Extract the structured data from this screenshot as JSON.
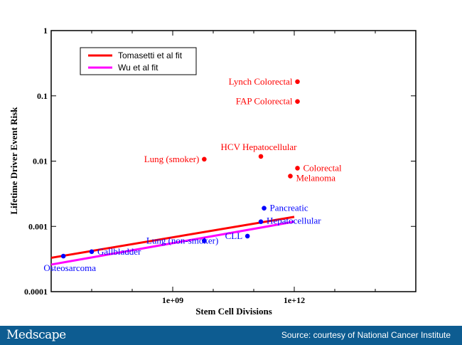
{
  "chart_data": {
    "type": "scatter",
    "x_scale": "log10",
    "y_scale": "log10",
    "xlabel": "Stem Cell Divisions",
    "ylabel": "Lifetime Driver Event Risk",
    "xlim": [
      1000000,
      1000000000000000
    ],
    "ylim": [
      0.0001,
      1
    ],
    "x_ticks": [
      1000000000,
      1000000000000
    ],
    "x_tick_labels": [
      "1e+09",
      "1e+12"
    ],
    "y_ticks": [
      0.0001,
      0.001,
      0.01,
      0.1,
      1
    ],
    "y_tick_labels": [
      "0.0001",
      "0.001",
      "0.01",
      "0.1",
      "1"
    ],
    "grid": false,
    "legend_position": "top-left",
    "fits": [
      {
        "name": "Tomasetti et al fit",
        "color": "#ff0000",
        "x": [
          1000000,
          1000000000000
        ],
        "y": [
          0.00033,
          0.0014
        ]
      },
      {
        "name": "Wu et al fit",
        "color": "#ff00ff",
        "x": [
          1000000,
          1000000000000
        ],
        "y": [
          0.00026,
          0.00118
        ]
      }
    ],
    "points": [
      {
        "label": "Lynch Colorectal",
        "x": 1200000000000,
        "y": 0.165,
        "color": "#ff0000",
        "label_side": "left"
      },
      {
        "label": "FAP Colorectal",
        "x": 1200000000000,
        "y": 0.082,
        "color": "#ff0000",
        "label_side": "left"
      },
      {
        "label": "HCV Hepatocellular",
        "x": 150000000000,
        "y": 0.0118,
        "color": "#ff0000",
        "label_side": "above"
      },
      {
        "label": "Lung (smoker)",
        "x": 6000000000,
        "y": 0.0107,
        "color": "#ff0000",
        "label_side": "left"
      },
      {
        "label": "Colorectal",
        "x": 1200000000000,
        "y": 0.0078,
        "color": "#ff0000",
        "label_side": "right"
      },
      {
        "label": "Melanoma",
        "x": 800000000000,
        "y": 0.0059,
        "color": "#ff0000",
        "label_side": "right"
      },
      {
        "label": "Pancreatic",
        "x": 180000000000,
        "y": 0.0019,
        "color": "#0000ff",
        "label_side": "right"
      },
      {
        "label": "Hepatocellular",
        "x": 150000000000,
        "y": 0.00118,
        "color": "#0000ff",
        "label_side": "right"
      },
      {
        "label": "CLL",
        "x": 70000000000,
        "y": 0.00071,
        "color": "#0000ff",
        "label_side": "left"
      },
      {
        "label": "Lung (non-smoker)",
        "x": 6000000000,
        "y": 0.0006,
        "color": "#0000ff",
        "label_side": "left-over"
      },
      {
        "label": "Gallbladder",
        "x": 10000000,
        "y": 0.00041,
        "color": "#0000ff",
        "label_side": "right"
      },
      {
        "label": "Osteosarcoma",
        "x": 2000000,
        "y": 0.00035,
        "color": "#0000ff",
        "label_side": "below"
      }
    ]
  },
  "footer": {
    "brand": "Medscape",
    "source": "Source: courtesy of National Cancer Institute"
  }
}
